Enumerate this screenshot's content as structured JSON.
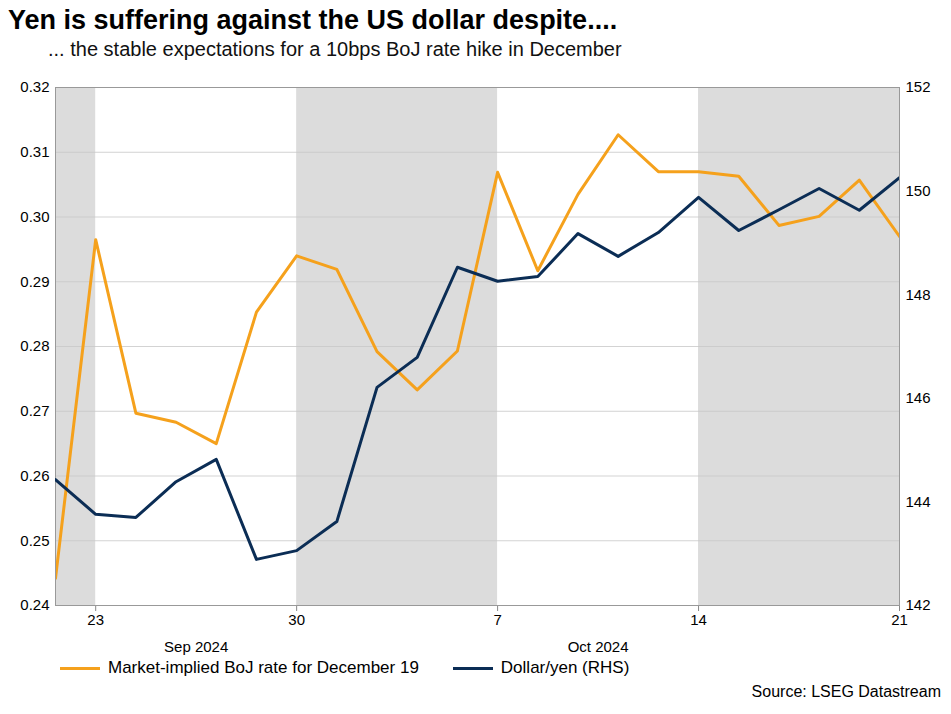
{
  "chart_data": {
    "type": "line",
    "title": "Yen is suffering against the US dollar despite....",
    "subtitle": "... the stable expectations for a 10bps BoJ rate hike in December",
    "source": "Source: LSEG Datastream",
    "categories": [
      null,
      "23",
      null,
      null,
      null,
      null,
      "30",
      null,
      null,
      null,
      null,
      "7",
      null,
      null,
      null,
      null,
      "14",
      null,
      null,
      null,
      null,
      "21"
    ],
    "x_groups": [
      {
        "label": "Sep 2024",
        "from": "23",
        "to": "30"
      },
      {
        "label": "Oct 2024",
        "from": "7",
        "to": "14"
      }
    ],
    "series": [
      {
        "name": "Market-implied BoJ rate for December 19",
        "color": "#f5a11c",
        "values": [
          0.2442,
          0.2965,
          0.2697,
          0.2683,
          0.265,
          0.2853,
          0.294,
          0.2919,
          0.2792,
          0.2733,
          0.2793,
          0.3069,
          0.2917,
          0.3035,
          0.3127,
          0.307,
          0.307,
          0.3063,
          0.2987,
          0.3001,
          0.3057,
          0.297
        ]
      },
      {
        "name": "Dollar/yen (RHS)",
        "color": "#0b2d55",
        "axis": "y2",
        "values": [
          144.43,
          143.76,
          143.7,
          144.39,
          144.82,
          142.89,
          143.06,
          143.62,
          146.21,
          146.79,
          148.53,
          148.26,
          148.35,
          149.18,
          148.74,
          149.2,
          149.88,
          149.24,
          149.64,
          150.05,
          149.63,
          150.26
        ]
      }
    ],
    "ylim": [
      0.24,
      0.32
    ],
    "yticks": [
      0.24,
      0.25,
      0.26,
      0.27,
      0.28,
      0.29,
      {
        "value": 0.3,
        "label": "0.30"
      },
      0.31,
      0.32
    ],
    "y2lim": [
      142,
      152
    ],
    "y2ticks": [
      142,
      144,
      146,
      148,
      150,
      152
    ],
    "grid": true,
    "legend": "bottom"
  }
}
